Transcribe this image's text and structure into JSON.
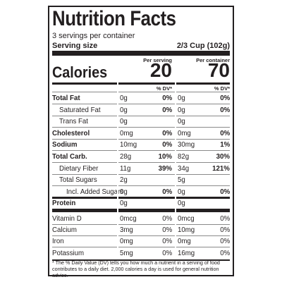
{
  "header": {
    "title": "Nutrition Facts",
    "servings": "3 servings per container",
    "serving_size_label": "Serving size",
    "serving_size": "2/3 Cup (102g)"
  },
  "columns": {
    "serving": "Per serving",
    "container": "Per container",
    "dv_header": "% DV*"
  },
  "calories": {
    "label": "Calories",
    "serving": "20",
    "container": "70"
  },
  "rows": [
    {
      "name": "Total Fat",
      "amount1": "0g",
      "dv1": "0%",
      "amount2": "0g",
      "dv2": "0%"
    },
    {
      "name": "Saturated Fat",
      "amount1": "0g",
      "dv1": "0%",
      "amount2": "0g",
      "dv2": "0%"
    },
    {
      "name": "Trans Fat",
      "amount1": "0g",
      "amount2": "0g"
    },
    {
      "name": "Cholesterol",
      "amount1": "0mg",
      "dv1": "0%",
      "amount2": "0mg",
      "dv2": "0%"
    },
    {
      "name": "Sodium",
      "amount1": "10mg",
      "dv1": "0%",
      "amount2": "30mg",
      "dv2": "1%"
    },
    {
      "name": "Total Carb.",
      "amount1": "28g",
      "dv1": "10%",
      "amount2": "82g",
      "dv2": "30%"
    },
    {
      "name": "Dietary Fiber",
      "amount1": "11g",
      "dv1": "39%",
      "amount2": "34g",
      "dv2": "121%"
    },
    {
      "name": "Total Sugars",
      "amount1": "2g",
      "amount2": "5g"
    },
    {
      "name": "Incl. Added Sugars",
      "amount1": "0g",
      "dv1": "0%",
      "amount2": "0g",
      "dv2": "0%"
    },
    {
      "name": "Protein",
      "amount1": "0g",
      "amount2": "0g"
    },
    {
      "name": "Vitamin D",
      "amount1": "0mcg",
      "dv1": "0%",
      "amount2": "0mcg",
      "dv2": "0%"
    },
    {
      "name": "Calcium",
      "amount1": "3mg",
      "dv1": "0%",
      "amount2": "10mg",
      "dv2": "0%"
    },
    {
      "name": "Iron",
      "amount1": "0mg",
      "dv1": "0%",
      "amount2": "0mg",
      "dv2": "0%"
    },
    {
      "name": "Potassium",
      "amount1": "5mg",
      "dv1": "0%",
      "amount2": "16mg",
      "dv2": "0%"
    }
  ],
  "footnote": "* The % Daily Value (DV) tells you how much a nutrient in a serving of food contributes to a daily diet. 2,000 calories a day is used for general nutrition advice."
}
